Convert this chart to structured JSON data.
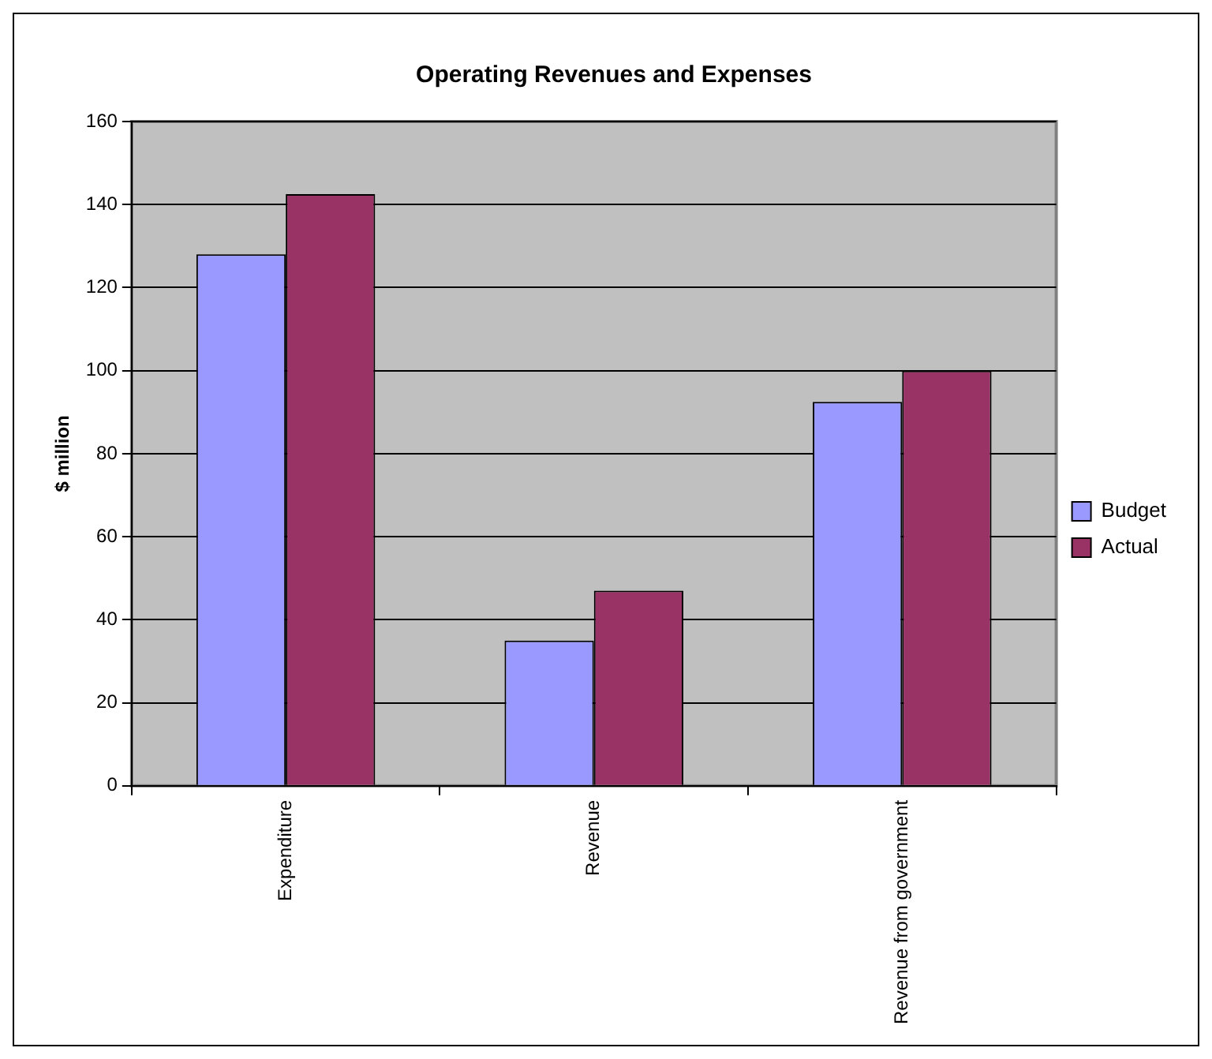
{
  "chart_data": {
    "type": "bar",
    "title": "Operating Revenues and Expenses",
    "ylabel": "$ million",
    "categories": [
      "Expenditure",
      "Revenue",
      "Revenue from government"
    ],
    "series": [
      {
        "name": "Budget",
        "color": "#9999ff",
        "values": [
          128,
          35,
          92.5
        ]
      },
      {
        "name": "Actual",
        "color": "#993366",
        "values": [
          142.5,
          47,
          100
        ]
      }
    ],
    "ylim": [
      0,
      160
    ],
    "yticks": [
      0,
      20,
      40,
      60,
      80,
      100,
      120,
      140,
      160
    ],
    "grid": "y",
    "legend": "right"
  }
}
